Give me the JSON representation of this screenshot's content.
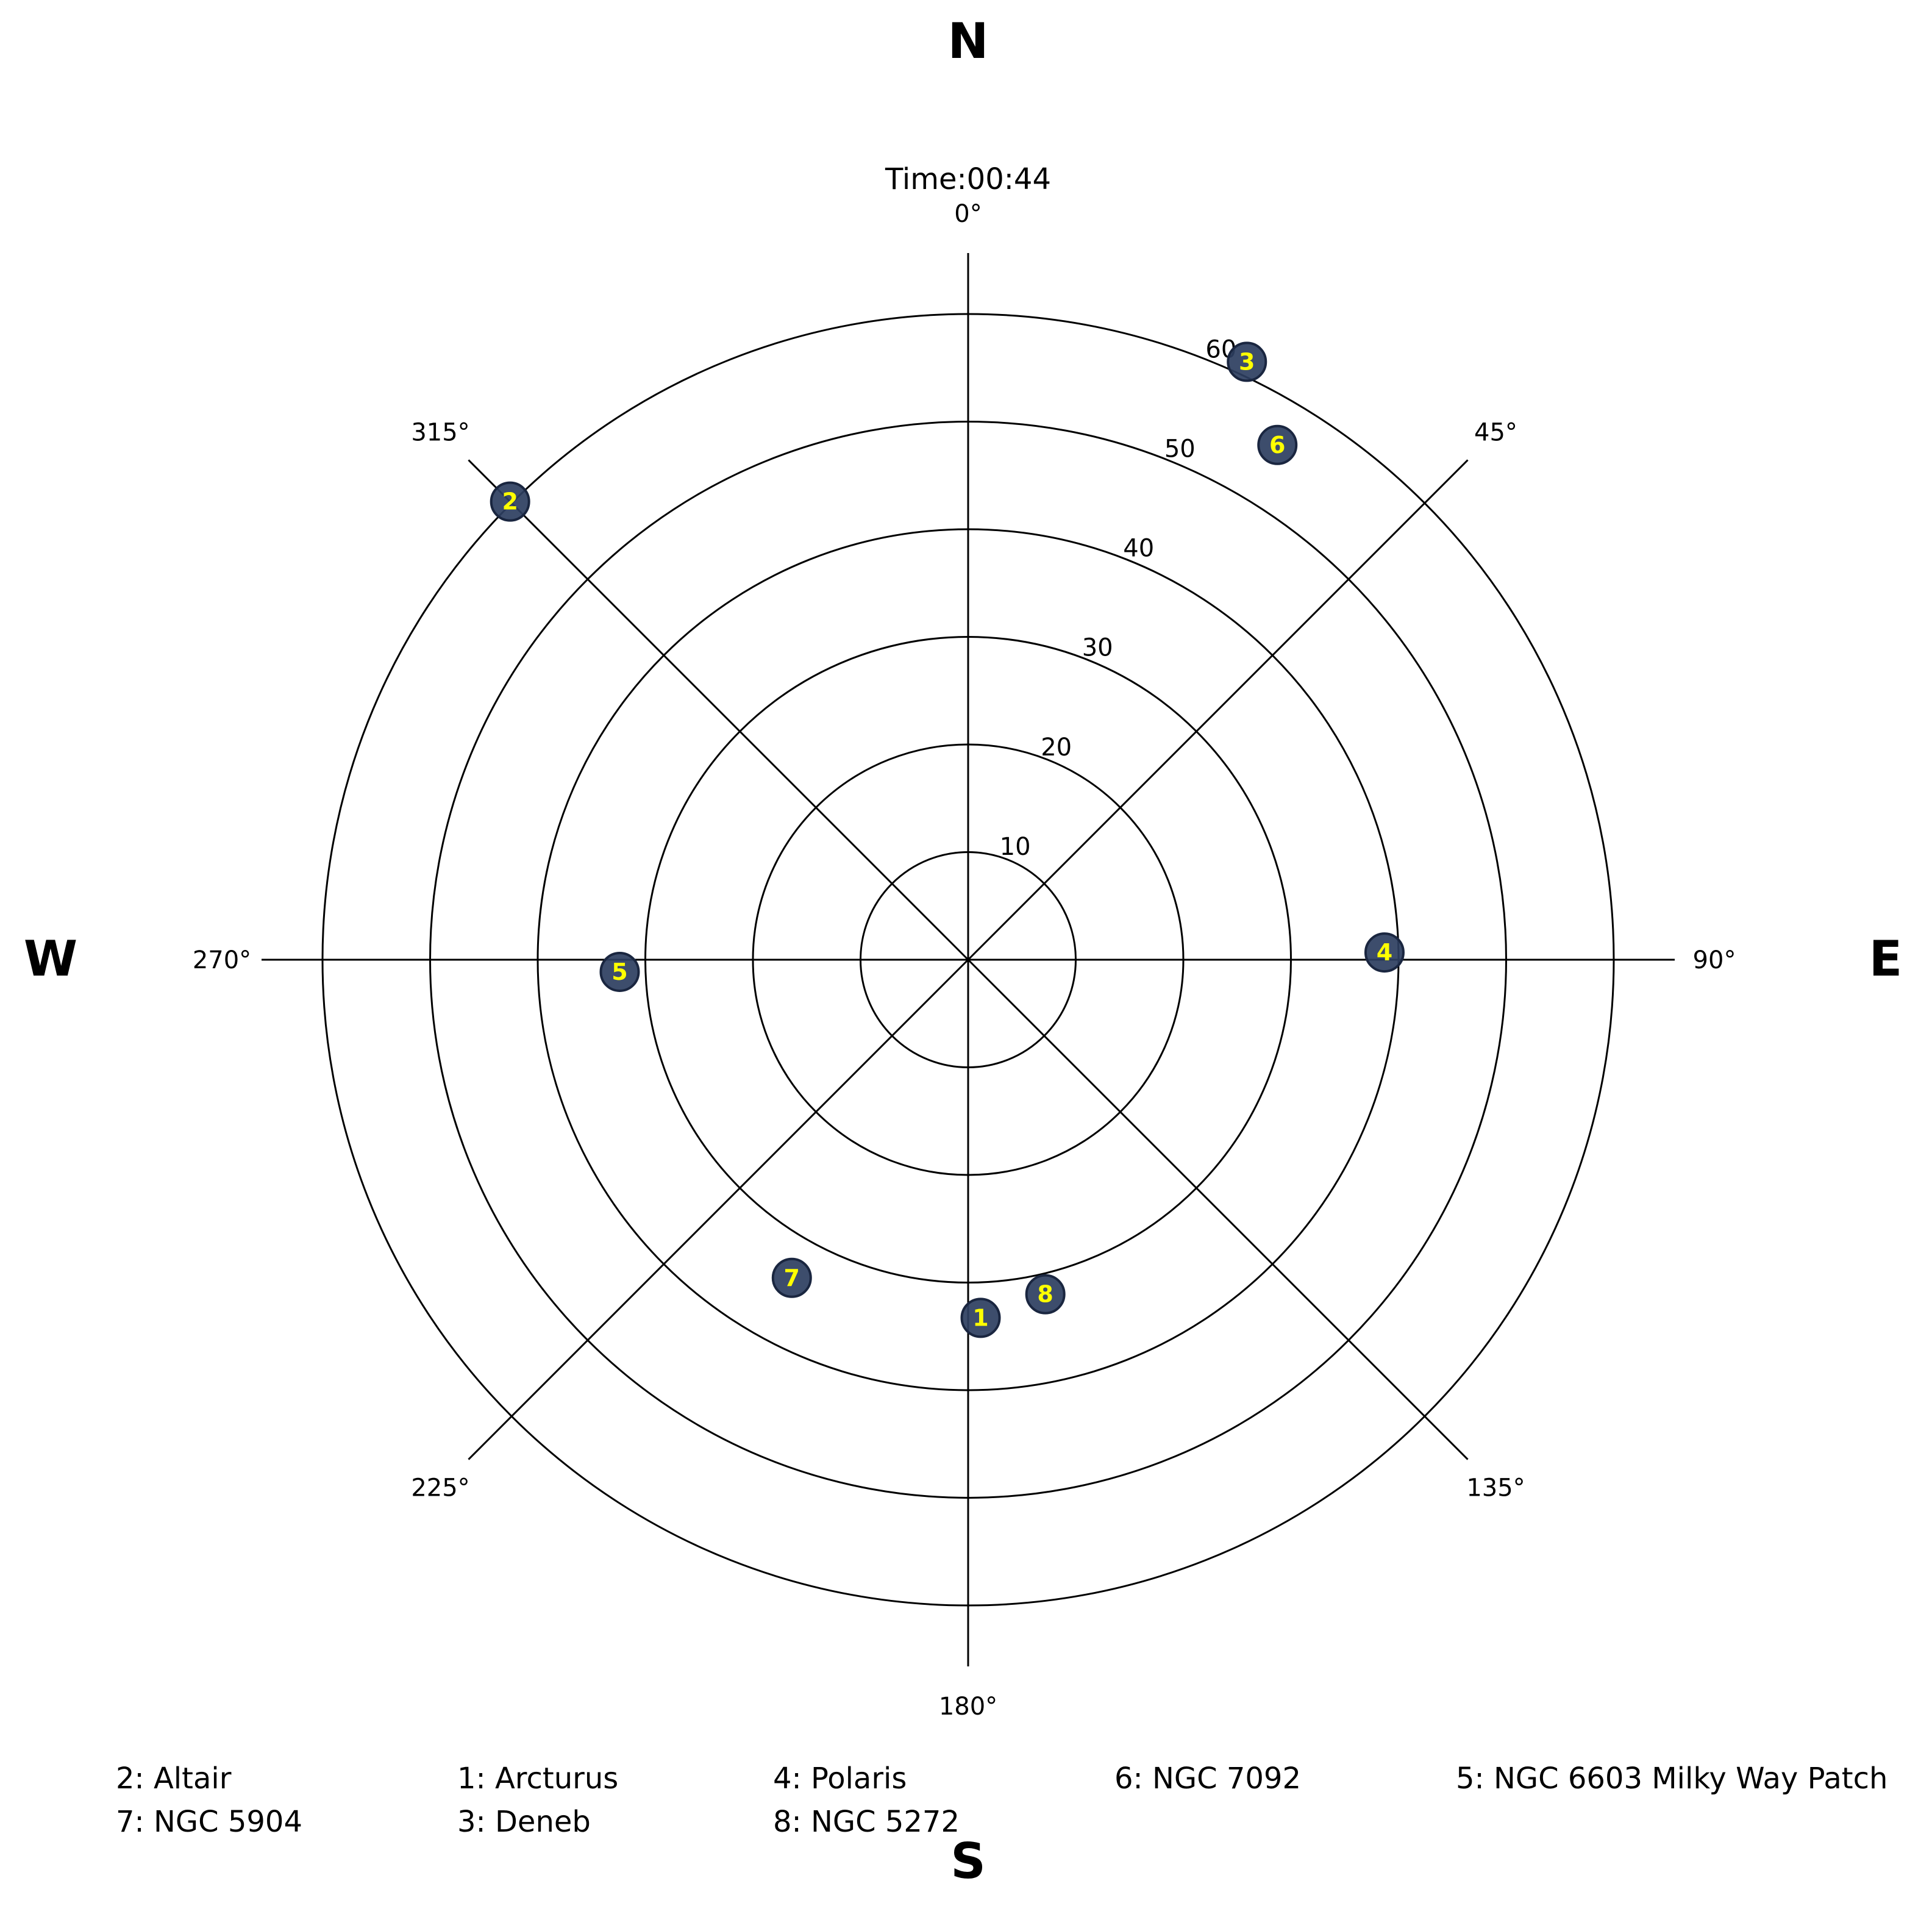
{
  "chart_data": {
    "type": "scatter",
    "projection": "polar",
    "title": "Time:00:44",
    "compass": {
      "north": "N",
      "east": "E",
      "south": "S",
      "west": "W"
    },
    "azimuth_ticks": [
      {
        "deg": 0,
        "label": "0°"
      },
      {
        "deg": 45,
        "label": "45°"
      },
      {
        "deg": 90,
        "label": "90°"
      },
      {
        "deg": 135,
        "label": "135°"
      },
      {
        "deg": 180,
        "label": "180°"
      },
      {
        "deg": 225,
        "label": "225°"
      },
      {
        "deg": 270,
        "label": "270°"
      },
      {
        "deg": 315,
        "label": "315°"
      }
    ],
    "radial_ticks": [
      10,
      20,
      30,
      40,
      50,
      60
    ],
    "radial_tick_labels": [
      "10",
      "20",
      "30",
      "40",
      "50",
      "60"
    ],
    "rlim": [
      0,
      60
    ],
    "grid": true,
    "marker_fill": "#2c3e60",
    "marker_label_color": "#ffff00",
    "points": [
      {
        "id": "1",
        "name": "Arcturus",
        "az": 178,
        "r": 33.3
      },
      {
        "id": "2",
        "name": "Altair",
        "az": 315,
        "r": 60.2
      },
      {
        "id": "3",
        "name": "Deneb",
        "az": 25,
        "r": 61.3
      },
      {
        "id": "4",
        "name": "Polaris",
        "az": 89,
        "r": 38.7
      },
      {
        "id": "5",
        "name": "NGC 6603 Milky Way Patch",
        "az": 268,
        "r": 32.4
      },
      {
        "id": "6",
        "name": "NGC 7092",
        "az": 31,
        "r": 55.8
      },
      {
        "id": "7",
        "name": "NGC 5904",
        "az": 209,
        "r": 33.8
      },
      {
        "id": "8",
        "name": "NGC 5272",
        "az": 167,
        "r": 31.9
      }
    ],
    "legend": [
      {
        "text": "2: Altair"
      },
      {
        "text": "7: NGC 5904"
      },
      {
        "text": "1: Arcturus"
      },
      {
        "text": "3: Deneb"
      },
      {
        "text": "4: Polaris"
      },
      {
        "text": "8: NGC 5272"
      },
      {
        "text": "6: NGC 7092"
      },
      {
        "text": "5: NGC 6603 Milky Way Patch"
      }
    ]
  }
}
